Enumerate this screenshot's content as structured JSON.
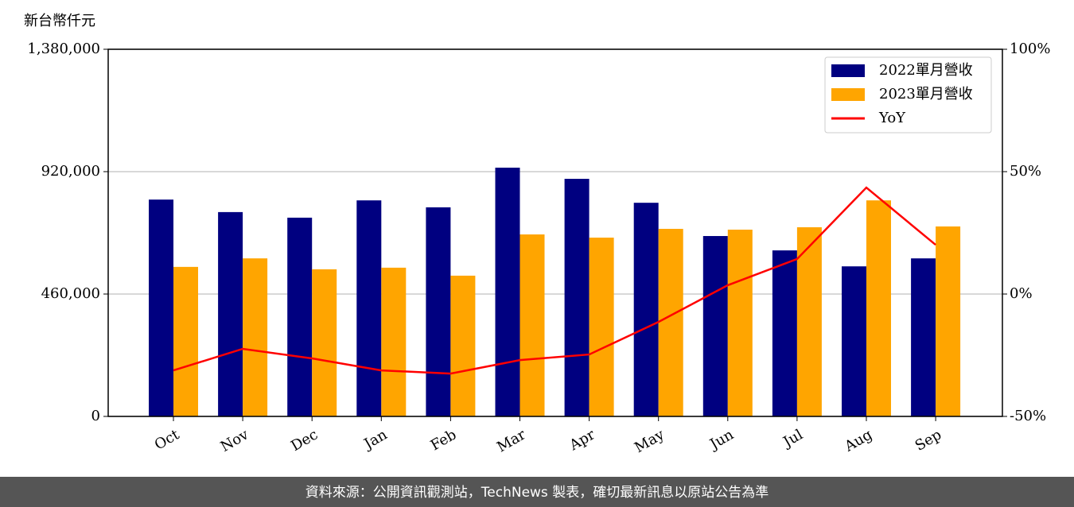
{
  "chart_data": {
    "type": "bar",
    "ylabel": "新台幣仟元",
    "categories": [
      "Oct",
      "Nov",
      "Dec",
      "Jan",
      "Feb",
      "Mar",
      "Apr",
      "May",
      "Jun",
      "Jul",
      "Aug",
      "Sep"
    ],
    "series": [
      {
        "name": "2022單月營收",
        "color": "#000080",
        "values": [
          815000,
          768000,
          747000,
          812000,
          786000,
          935000,
          893000,
          803000,
          678000,
          624000,
          564000,
          594000
        ]
      },
      {
        "name": "2023單月營收",
        "color": "#ffa500",
        "values": [
          562000,
          594000,
          553000,
          559000,
          529000,
          684000,
          672000,
          705000,
          702000,
          711000,
          812000,
          714000
        ]
      },
      {
        "name": "YoY",
        "type": "line",
        "axis": "y2",
        "color": "#ff0000",
        "values": [
          -31.2,
          -22.4,
          -26.3,
          -31.2,
          -32.5,
          -27.0,
          -24.7,
          -11.4,
          3.6,
          14.3,
          43.5,
          20.1
        ]
      }
    ],
    "ylim": [
      0,
      1380000
    ],
    "yticks": [
      {
        "value": 0,
        "label": "0"
      },
      {
        "value": 460000,
        "label": "460,000"
      },
      {
        "value": 920000,
        "label": "920,000"
      },
      {
        "value": 1380000,
        "label": "1,380,000"
      }
    ],
    "y2lim": [
      -50,
      100
    ],
    "y2ticks": [
      {
        "value": -50,
        "label": "-50%"
      },
      {
        "value": 0,
        "label": "0%"
      },
      {
        "value": 50,
        "label": "50%"
      },
      {
        "value": 100,
        "label": "100%"
      }
    ],
    "grid": true,
    "legend": "upper right"
  },
  "footer": "資料來源：公開資訊觀測站，TechNews 製表，確切最新訊息以原站公告為準"
}
